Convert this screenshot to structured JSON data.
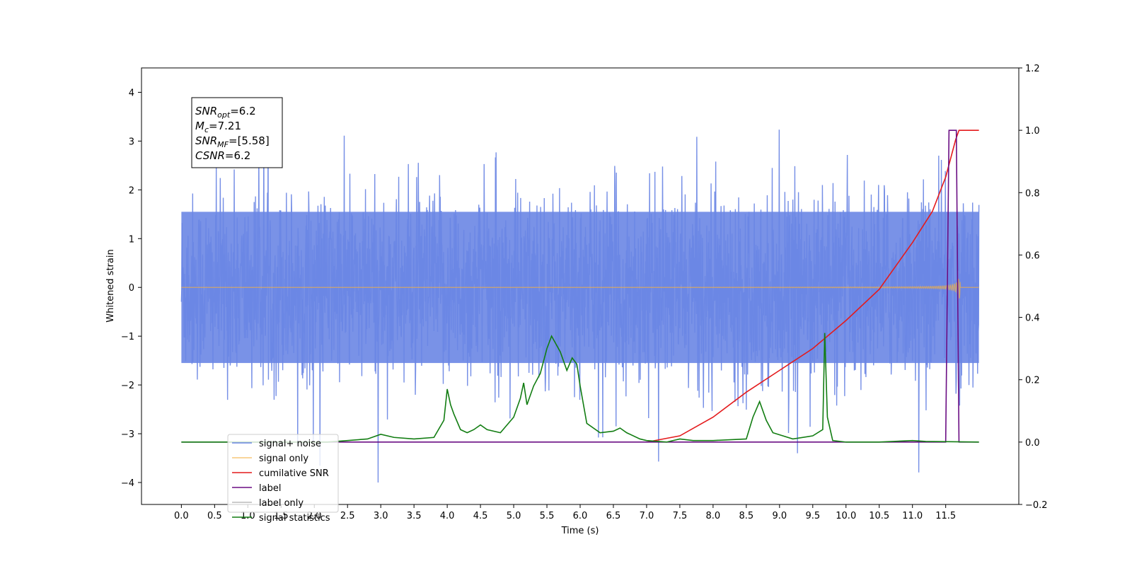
{
  "chart_data": {
    "type": "line",
    "xlabel": "Time (s)",
    "ylabel": "Whitened strain",
    "xlim": [
      -0.6,
      12.6
    ],
    "ylim": [
      -4.45,
      4.5
    ],
    "y2lim": [
      -0.2,
      1.2
    ],
    "x_ticks": [
      "0.0",
      "0.5",
      "1.0",
      "1.5",
      "2.0",
      "2.5",
      "3.0",
      "3.5",
      "4.0",
      "4.5",
      "5.0",
      "5.5",
      "6.0",
      "6.5",
      "7.0",
      "7.5",
      "8.0",
      "8.5",
      "9.0",
      "9.5",
      "10.0",
      "10.5",
      "11.0",
      "11.5"
    ],
    "y_ticks": [
      4,
      3,
      2,
      1,
      0,
      -1,
      -2,
      -3,
      -4
    ],
    "y2_ticks": [
      "1.2",
      "1.0",
      "0.8",
      "0.6",
      "0.4",
      "0.2",
      "0.0",
      "−0.2"
    ],
    "y_tick_labels": [
      "4",
      "3",
      "2",
      "1",
      "0",
      "−1",
      "−2",
      "−3",
      "−4"
    ],
    "grid": false,
    "legend_placement": "lower-left",
    "annotation": {
      "lines": [
        {
          "base": "SNR",
          "sub": "opt",
          "rest": "=6.2"
        },
        {
          "base": "M",
          "sub": "c",
          "rest": "=7.21"
        },
        {
          "base": "SNR",
          "sub": "MF",
          "rest": "=[5.58]"
        },
        {
          "base": "CSNR",
          "sub": "",
          "rest": "=6.2"
        }
      ]
    },
    "series": [
      {
        "name": "signal+ noise",
        "color": "#6a86e4",
        "axis": "left",
        "kind": "noise",
        "x_start": 0.0,
        "x_end": 12.0,
        "envelope": 1.9
      },
      {
        "name": "signal only",
        "color": "#f5b041",
        "axis": "left",
        "kind": "chirp",
        "x_start": 0.0,
        "x_end": 12.0
      },
      {
        "name": "cumilative SNR",
        "color": "#e41a1c",
        "axis": "right",
        "x": [
          7.0,
          7.5,
          8.0,
          8.5,
          9.0,
          9.5,
          10.0,
          10.5,
          11.0,
          11.3,
          11.5,
          11.6,
          11.65,
          11.7,
          12.0
        ],
        "y": [
          0.0,
          0.02,
          0.08,
          0.16,
          0.23,
          0.3,
          0.39,
          0.49,
          0.64,
          0.74,
          0.85,
          0.93,
          0.97,
          1.0,
          1.0
        ]
      },
      {
        "name": "label",
        "color": "#6a0d83",
        "axis": "right",
        "x": [
          0.0,
          11.5,
          11.55,
          11.66,
          11.7,
          11.75,
          12.0
        ],
        "y": [
          0.0,
          0.0,
          1.0,
          1.0,
          0.0,
          0.0,
          0.0
        ]
      },
      {
        "name": "label only",
        "color": "#bbbbbb",
        "axis": "right",
        "hidden": true
      },
      {
        "name": "signal statistics",
        "color": "#127d12",
        "axis": "right",
        "x": [
          0.0,
          2.2,
          2.5,
          2.8,
          3.0,
          3.2,
          3.5,
          3.8,
          3.95,
          4.0,
          4.05,
          4.1,
          4.2,
          4.3,
          4.4,
          4.5,
          4.6,
          4.8,
          5.0,
          5.1,
          5.15,
          5.2,
          5.3,
          5.4,
          5.5,
          5.57,
          5.7,
          5.8,
          5.88,
          5.95,
          6.0,
          6.1,
          6.3,
          6.5,
          6.6,
          6.7,
          6.9,
          7.0,
          7.3,
          7.5,
          7.7,
          8.0,
          8.5,
          8.6,
          8.7,
          8.8,
          8.9,
          9.2,
          9.5,
          9.65,
          9.68,
          9.72,
          9.8,
          10.0,
          10.5,
          11.0,
          11.2,
          12.0
        ],
        "y": [
          0.0,
          0.0,
          0.005,
          0.01,
          0.025,
          0.015,
          0.01,
          0.015,
          0.07,
          0.17,
          0.12,
          0.09,
          0.04,
          0.03,
          0.04,
          0.055,
          0.04,
          0.03,
          0.08,
          0.14,
          0.19,
          0.12,
          0.18,
          0.22,
          0.3,
          0.34,
          0.29,
          0.23,
          0.27,
          0.25,
          0.18,
          0.06,
          0.03,
          0.035,
          0.045,
          0.03,
          0.01,
          0.005,
          0.0,
          0.01,
          0.005,
          0.005,
          0.01,
          0.08,
          0.13,
          0.07,
          0.03,
          0.01,
          0.02,
          0.04,
          0.35,
          0.08,
          0.005,
          0.0,
          0.0,
          0.005,
          0.002,
          0.0
        ]
      }
    ]
  }
}
